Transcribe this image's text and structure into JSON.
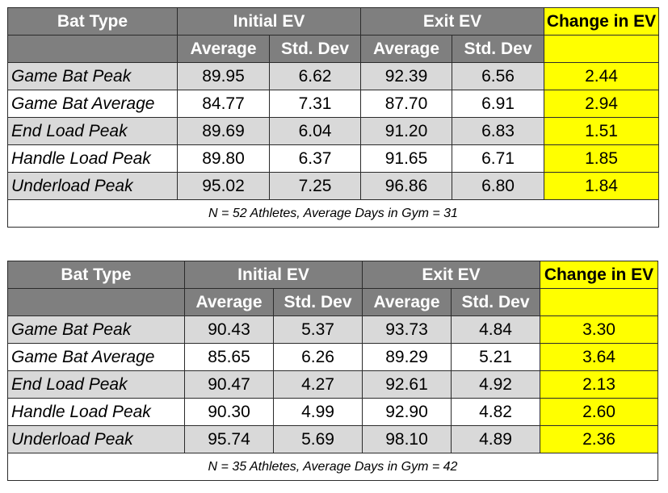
{
  "tables": [
    {
      "headers": {
        "bat_type": "Bat Type",
        "initial_ev": "Initial EV",
        "exit_ev": "Exit EV",
        "change_in_ev": "Change in EV",
        "average": "Average",
        "std_dev": "Std. Dev"
      },
      "rows": [
        {
          "name": "Game Bat Peak",
          "init_avg": "89.95",
          "init_sd": "6.62",
          "exit_avg": "92.39",
          "exit_sd": "6.56",
          "change": "2.44"
        },
        {
          "name": "Game Bat Average",
          "init_avg": "84.77",
          "init_sd": "7.31",
          "exit_avg": "87.70",
          "exit_sd": "6.91",
          "change": "2.94"
        },
        {
          "name": "End Load Peak",
          "init_avg": "89.69",
          "init_sd": "6.04",
          "exit_avg": "91.20",
          "exit_sd": "6.83",
          "change": "1.51"
        },
        {
          "name": "Handle Load Peak",
          "init_avg": "89.80",
          "init_sd": "6.37",
          "exit_avg": "91.65",
          "exit_sd": "6.71",
          "change": "1.85"
        },
        {
          "name": "Underload Peak",
          "init_avg": "95.02",
          "init_sd": "7.25",
          "exit_avg": "96.86",
          "exit_sd": "6.80",
          "change": "1.84"
        }
      ],
      "footer": "N = 52 Athletes, Average Days in Gym = 31"
    },
    {
      "headers": {
        "bat_type": "Bat Type",
        "initial_ev": "Initial EV",
        "exit_ev": "Exit EV",
        "change_in_ev": "Change in EV",
        "average": "Average",
        "std_dev": "Std. Dev"
      },
      "rows": [
        {
          "name": "Game Bat Peak",
          "init_avg": "90.43",
          "init_sd": "5.37",
          "exit_avg": "93.73",
          "exit_sd": "4.84",
          "change": "3.30"
        },
        {
          "name": "Game Bat Average",
          "init_avg": "85.65",
          "init_sd": "6.26",
          "exit_avg": "89.29",
          "exit_sd": "5.21",
          "change": "3.64"
        },
        {
          "name": "End Load Peak",
          "init_avg": "90.47",
          "init_sd": "4.27",
          "exit_avg": "92.61",
          "exit_sd": "4.92",
          "change": "2.13"
        },
        {
          "name": "Handle Load Peak",
          "init_avg": "90.30",
          "init_sd": "4.99",
          "exit_avg": "92.90",
          "exit_sd": "4.82",
          "change": "2.60"
        },
        {
          "name": "Underload Peak",
          "init_avg": "95.74",
          "init_sd": "5.69",
          "exit_avg": "98.10",
          "exit_sd": "4.89",
          "change": "2.36"
        }
      ],
      "footer": "N = 35 Athletes, Average Days in Gym = 42"
    }
  ],
  "colors": {
    "header_gray": "#7f7f7f",
    "shaded_row": "#d9d9d9",
    "highlight_yellow": "#ffff00"
  }
}
